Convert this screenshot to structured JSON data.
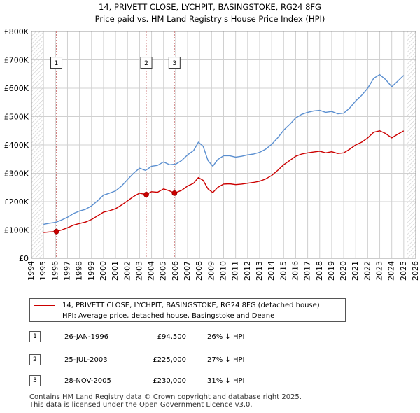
{
  "chart_data": {
    "type": "line",
    "title": "14, PRIVETT CLOSE, LYCHPIT, BASINGSTOKE, RG24 8FG",
    "subtitle": "Price paid vs. HM Land Registry's House Price Index (HPI)",
    "xlim": [
      1994,
      2026
    ],
    "ylim": [
      0,
      800000
    ],
    "y_ticks": [
      0,
      100000,
      200000,
      300000,
      400000,
      500000,
      600000,
      700000,
      800000
    ],
    "y_tick_labels": [
      "£0",
      "£100K",
      "£200K",
      "£300K",
      "£400K",
      "£500K",
      "£600K",
      "£700K",
      "£800K"
    ],
    "x_ticks": [
      1994,
      1995,
      1996,
      1997,
      1998,
      1999,
      2000,
      2001,
      2002,
      2003,
      2004,
      2005,
      2006,
      2007,
      2008,
      2009,
      2010,
      2011,
      2012,
      2013,
      2014,
      2015,
      2016,
      2017,
      2018,
      2019,
      2020,
      2021,
      2022,
      2023,
      2024,
      2025,
      2026
    ],
    "x_tick_labels": [
      "1994",
      "1995",
      "1996",
      "1997",
      "1998",
      "1999",
      "2000",
      "2001",
      "2002",
      "2003",
      "2004",
      "2005",
      "2006",
      "2007",
      "2008",
      "2009",
      "2010",
      "2011",
      "2012",
      "2013",
      "2014",
      "2015",
      "2016",
      "2017",
      "2018",
      "2019",
      "2020",
      "2021",
      "2022",
      "2023",
      "2024",
      "2025",
      "2026"
    ],
    "data_range": [
      1995.0,
      2025.25
    ],
    "grid": true,
    "series": [
      {
        "name": "14, PRIVETT CLOSE, LYCHPIT, BASINGSTOKE, RG24 8FG (detached house)",
        "color": "#cc0000",
        "x": [
          1995.0,
          1995.5,
          1996.07,
          1996.5,
          1997.0,
          1997.5,
          1998.0,
          1998.5,
          1999.0,
          1999.5,
          2000.0,
          2000.5,
          2001.0,
          2001.5,
          2002.0,
          2002.5,
          2003.0,
          2003.56,
          2004.0,
          2004.5,
          2005.0,
          2005.5,
          2005.91,
          2006.5,
          2007.0,
          2007.5,
          2007.9,
          2008.3,
          2008.7,
          2009.1,
          2009.5,
          2010.0,
          2010.5,
          2011.0,
          2011.5,
          2012.0,
          2012.5,
          2013.0,
          2013.5,
          2014.0,
          2014.5,
          2015.0,
          2015.5,
          2016.0,
          2016.5,
          2017.0,
          2017.5,
          2018.0,
          2018.5,
          2019.0,
          2019.5,
          2020.0,
          2020.5,
          2021.0,
          2021.5,
          2022.0,
          2022.5,
          2023.0,
          2023.5,
          2024.0,
          2024.5,
          2025.0
        ],
        "values": [
          91000,
          93000,
          94500,
          100000,
          108000,
          117000,
          123000,
          128000,
          137000,
          150000,
          163000,
          168000,
          175000,
          188000,
          203000,
          218000,
          230000,
          225000,
          235000,
          233000,
          245000,
          238000,
          230000,
          240000,
          255000,
          265000,
          285000,
          275000,
          245000,
          232000,
          250000,
          262000,
          263000,
          260000,
          262000,
          265000,
          268000,
          272000,
          280000,
          292000,
          310000,
          330000,
          345000,
          360000,
          368000,
          372000,
          375000,
          378000,
          372000,
          376000,
          370000,
          372000,
          385000,
          400000,
          410000,
          425000,
          445000,
          450000,
          440000,
          425000,
          438000,
          450000
        ]
      },
      {
        "name": "HPI: Average price, detached house, Basingstoke and Deane",
        "color": "#5b8fd0",
        "x": [
          1995.0,
          1995.5,
          1996.0,
          1996.5,
          1997.0,
          1997.5,
          1998.0,
          1998.5,
          1999.0,
          1999.5,
          2000.0,
          2000.5,
          2001.0,
          2001.5,
          2002.0,
          2002.5,
          2003.0,
          2003.5,
          2004.0,
          2004.5,
          2005.0,
          2005.5,
          2006.0,
          2006.5,
          2007.0,
          2007.5,
          2007.9,
          2008.3,
          2008.7,
          2009.1,
          2009.5,
          2010.0,
          2010.5,
          2011.0,
          2011.5,
          2012.0,
          2012.5,
          2013.0,
          2013.5,
          2014.0,
          2014.5,
          2015.0,
          2015.5,
          2016.0,
          2016.5,
          2017.0,
          2017.5,
          2018.0,
          2018.5,
          2019.0,
          2019.5,
          2020.0,
          2020.5,
          2021.0,
          2021.5,
          2022.0,
          2022.5,
          2023.0,
          2023.5,
          2024.0,
          2024.5,
          2025.0
        ],
        "values": [
          120000,
          124000,
          127000,
          135000,
          145000,
          158000,
          167000,
          173000,
          185000,
          203000,
          223000,
          230000,
          238000,
          255000,
          278000,
          300000,
          318000,
          310000,
          325000,
          328000,
          340000,
          330000,
          332000,
          345000,
          365000,
          380000,
          410000,
          395000,
          345000,
          325000,
          348000,
          362000,
          362000,
          357000,
          360000,
          365000,
          368000,
          374000,
          385000,
          402000,
          425000,
          452000,
          472000,
          495000,
          508000,
          515000,
          520000,
          522000,
          515000,
          518000,
          510000,
          512000,
          530000,
          555000,
          575000,
          600000,
          635000,
          648000,
          630000,
          605000,
          625000,
          645000
        ]
      }
    ],
    "sales": [
      {
        "label": "1",
        "x": 1996.07,
        "value": 94500,
        "box_value": 690000
      },
      {
        "label": "2",
        "x": 2003.56,
        "value": 225000,
        "box_value": 690000
      },
      {
        "label": "3",
        "x": 2005.91,
        "value": 230000,
        "box_value": 690000
      }
    ]
  },
  "legend": {
    "property_label": "14, PRIVETT CLOSE, LYCHPIT, BASINGSTOKE, RG24 8FG (detached house)",
    "hpi_label": "HPI: Average price, detached house, Basingstoke and Deane"
  },
  "sales_table": [
    {
      "num": "1",
      "date": "26-JAN-1996",
      "price": "£94,500",
      "hpi": "26% ↓ HPI"
    },
    {
      "num": "2",
      "date": "25-JUL-2003",
      "price": "£225,000",
      "hpi": "27% ↓ HPI"
    },
    {
      "num": "3",
      "date": "28-NOV-2005",
      "price": "£230,000",
      "hpi": "31% ↓ HPI"
    }
  ],
  "footer": {
    "line1": "Contains HM Land Registry data © Crown copyright and database right 2025.",
    "line2": "This data is licensed under the Open Government Licence v3.0."
  },
  "colors": {
    "property": "#cc0000",
    "hpi": "#5b8fd0",
    "sale_line": "#d08080",
    "grid": "#d0d0d0",
    "hatch": "#cccccc"
  }
}
